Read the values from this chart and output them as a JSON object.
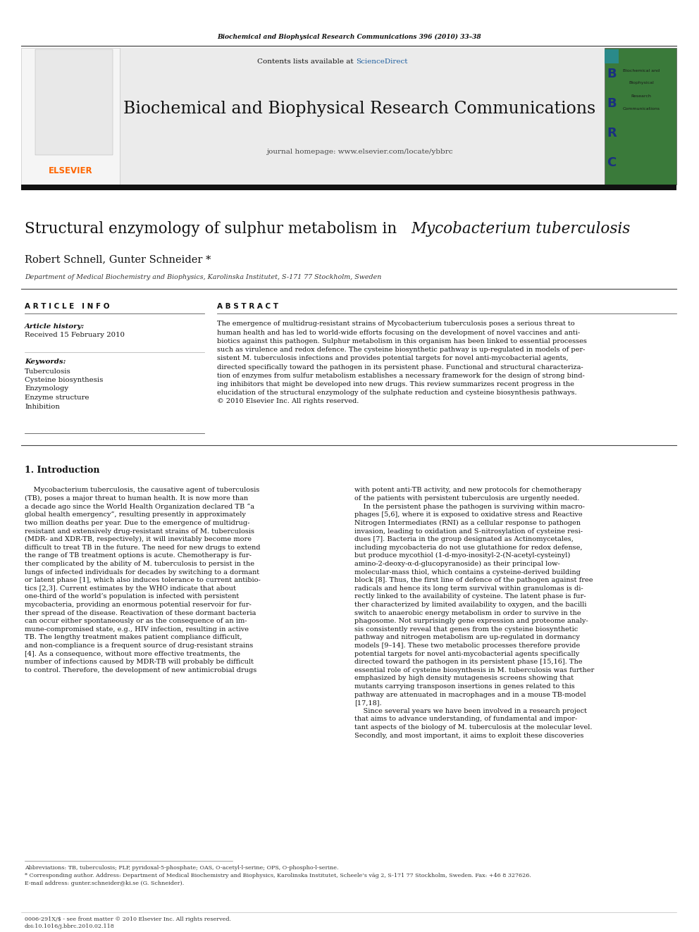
{
  "page_width": 9.92,
  "page_height": 13.23,
  "bg_color": "#ffffff",
  "header_citation": "Biochemical and Biophysical Research Communications 396 (2010) 33–38",
  "journal_name": "Biochemical and Biophysical Research Communications",
  "journal_homepage": "journal homepage: www.elsevier.com/locate/ybbrc",
  "sciencedirect_color": "#2060a0",
  "elsevier_color": "#ff6600",
  "article_title_normal": "Structural enzymology of sulphur metabolism in ",
  "article_title_italic": "Mycobacterium tuberculosis",
  "authors": "Robert Schnell, Gunter Schneider *",
  "affiliation": "Department of Medical Biochemistry and Biophysics, Karolinska Institutet, S-171 77 Stockholm, Sweden",
  "article_info_header": "A R T I C L E   I N F O",
  "abstract_header": "A B S T R A C T",
  "article_history_label": "Article history:",
  "received_date": "Received 15 February 2010",
  "keywords_label": "Keywords:",
  "keywords": [
    "Tuberculosis",
    "Cysteine biosynthesis",
    "Enzymology",
    "Enzyme structure",
    "Inhibition"
  ],
  "abstract_lines": [
    "The emergence of multidrug-resistant strains of Mycobacterium tuberculosis poses a serious threat to",
    "human health and has led to world-wide efforts focusing on the development of novel vaccines and anti-",
    "biotics against this pathogen. Sulphur metabolism in this organism has been linked to essential processes",
    "such as virulence and redox defence. The cysteine biosynthetic pathway is up-regulated in models of per-",
    "sistent M. tuberculosis infections and provides potential targets for novel anti-mycobacterial agents,",
    "directed specifically toward the pathogen in its persistent phase. Functional and structural characteriza-",
    "tion of enzymes from sulfur metabolism establishes a necessary framework for the design of strong bind-",
    "ing inhibitors that might be developed into new drugs. This review summarizes recent progress in the",
    "elucidation of the structural enzymology of the sulphate reduction and cysteine biosynthesis pathways.",
    "© 2010 Elsevier Inc. All rights reserved."
  ],
  "intro_header": "1. Introduction",
  "intro_col1_lines": [
    "    Mycobacterium tuberculosis, the causative agent of tuberculosis",
    "(TB), poses a major threat to human health. It is now more than",
    "a decade ago since the World Health Organization declared TB “a",
    "global health emergency”, resulting presently in approximately",
    "two million deaths per year. Due to the emergence of multidrug-",
    "resistant and extensively drug-resistant strains of M. tuberculosis",
    "(MDR- and XDR-TB, respectively), it will inevitably become more",
    "difficult to treat TB in the future. The need for new drugs to extend",
    "the range of TB treatment options is acute. Chemotherapy is fur-",
    "ther complicated by the ability of M. tuberculosis to persist in the",
    "lungs of infected individuals for decades by switching to a dormant",
    "or latent phase [1], which also induces tolerance to current antibio-",
    "tics [2,3]. Current estimates by the WHO indicate that about",
    "one-third of the world’s population is infected with persistent",
    "mycobacteria, providing an enormous potential reservoir for fur-",
    "ther spread of the disease. Reactivation of these dormant bacteria",
    "can occur either spontaneously or as the consequence of an im-",
    "mune-compromised state, e.g., HIV infection, resulting in active",
    "TB. The lengthy treatment makes patient compliance difficult,",
    "and non-compliance is a frequent source of drug-resistant strains",
    "[4]. As a consequence, without more effective treatments, the",
    "number of infections caused by MDR-TB will probably be difficult",
    "to control. Therefore, the development of new antimicrobial drugs"
  ],
  "intro_col2_lines": [
    "with potent anti-TB activity, and new protocols for chemotherapy",
    "of the patients with persistent tuberculosis are urgently needed.",
    "    In the persistent phase the pathogen is surviving within macro-",
    "phages [5,6], where it is exposed to oxidative stress and Reactive",
    "Nitrogen Intermediates (RNI) as a cellular response to pathogen",
    "invasion, leading to oxidation and S-nitrosylation of cysteine resi-",
    "dues [7]. Bacteria in the group designated as Actinomycetales,",
    "including mycobacteria do not use glutathione for redox defense,",
    "but produce mycothiol (1-d-myo-inosityl-2-(N-acetyl-cysteinyl)",
    "amino-2-deoxy-α-d-glucopyranoside) as their principal low-",
    "molecular-mass thiol, which contains a cysteine-derived building",
    "block [8]. Thus, the first line of defence of the pathogen against free",
    "radicals and hence its long term survival within granulomas is di-",
    "rectly linked to the availability of cysteine. The latent phase is fur-",
    "ther characterized by limited availability to oxygen, and the bacilli",
    "switch to anaerobic energy metabolism in order to survive in the",
    "phagosome. Not surprisingly gene expression and proteome analy-",
    "sis consistently reveal that genes from the cysteine biosynthetic",
    "pathway and nitrogen metabolism are up-regulated in dormancy",
    "models [9–14]. These two metabolic processes therefore provide",
    "potential targets for novel anti-mycobacterial agents specifically",
    "directed toward the pathogen in its persistent phase [15,16]. The",
    "essential role of cysteine biosynthesis in M. tuberculosis was further",
    "emphasized by high density mutagenesis screens showing that",
    "mutants carrying transposon insertions in genes related to this",
    "pathway are attenuated in macrophages and in a mouse TB-model",
    "[17,18].",
    "    Since several years we have been involved in a research project",
    "that aims to advance understanding, of fundamental and impor-",
    "tant aspects of the biology of M. tuberculosis at the molecular level.",
    "Secondly, and most important, it aims to exploit these discoveries"
  ],
  "footnote_abbrev": "Abbreviations: TB, tuberculosis; PLP, pyridoxal-5-phosphate; OAS, O-acetyl-l-serine; OPS, O-phospho-l-serine.",
  "footnote_corresponding": "* Corresponding author. Address: Department of Medical Biochemistry and Biophysics, Karolinska Institutet, Scheele’s väg 2, S-171 77 Stockholm, Sweden. Fax: +46 8 327626.",
  "footnote_email": "E-mail address: gunter.schneider@ki.se (G. Schneider).",
  "footer_left": "0006-291X/$ - see front matter © 2010 Elsevier Inc. All rights reserved.",
  "footer_doi": "doi:10.1016/j.bbrc.2010.02.118",
  "dark_bar_color": "#111111"
}
